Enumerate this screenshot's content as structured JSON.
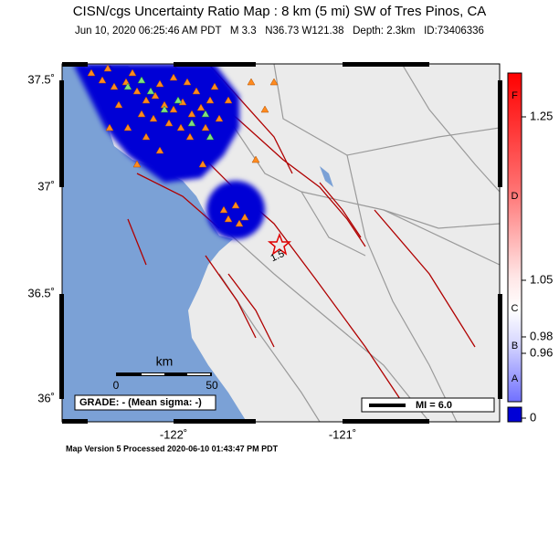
{
  "header": {
    "title": "CISN/cgs Uncertainty Ratio Map : 8 km (5 mi) SW of Tres Pinos, CA",
    "subtitle": "Jun 10, 2020 06:25:46 AM PDT   M 3.3   N36.73 W121.38   Depth: 2.3km   ID:73406336"
  },
  "map": {
    "lat_labels": [
      "37.5˚",
      "37˚",
      "36.5˚",
      "36˚"
    ],
    "lon_labels": [
      "-122˚",
      "-121˚"
    ],
    "epicenter_label": "1.5",
    "scale": {
      "unit": "km",
      "ticks": [
        "0",
        "50"
      ]
    },
    "grade": "GRADE: - (Mean sigma: -)",
    "mi_legend": "MI = 6.0"
  },
  "colorbar": {
    "ticks": [
      1.25,
      1.05,
      0.98,
      0.96,
      0
    ],
    "grades": [
      "F",
      "D",
      "C",
      "B",
      "A"
    ]
  },
  "footer": "Map Version 5 Processed 2020-06-10 01:43:47 PM PDT"
}
